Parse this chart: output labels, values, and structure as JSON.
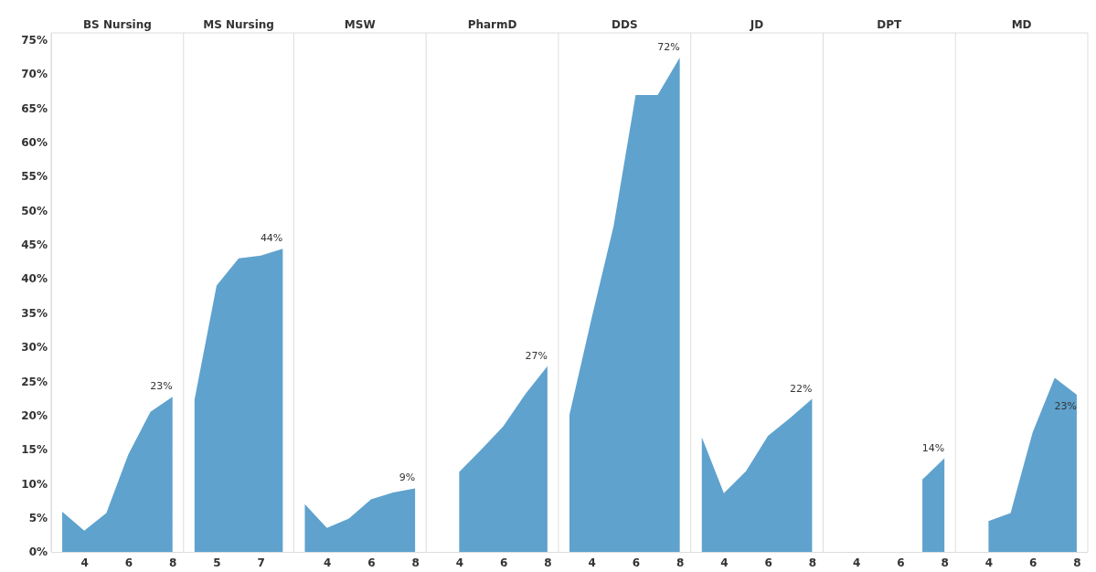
{
  "chart_data": [
    {
      "type": "area",
      "title": "BS Nursing",
      "x": [
        3,
        4,
        5,
        6,
        7,
        8
      ],
      "values": [
        5.9,
        3.1,
        5.7,
        14.3,
        20.5,
        22.7
      ],
      "value_labels": [
        null,
        null,
        null,
        null,
        null,
        "23%"
      ],
      "color": "#5fa2ce",
      "xlim": [
        2.5,
        8.5
      ],
      "xticks": [
        4,
        6,
        8
      ],
      "ylim": [
        0,
        76
      ],
      "yticks": [
        {
          "value": 0,
          "label": "0%"
        },
        {
          "value": 5,
          "label": "5%"
        },
        {
          "value": 10,
          "label": "10%"
        },
        {
          "value": 15,
          "label": "15%"
        },
        {
          "value": 20,
          "label": "20%"
        },
        {
          "value": 25,
          "label": "25%"
        },
        {
          "value": 30,
          "label": "30%"
        },
        {
          "value": 35,
          "label": "35%"
        },
        {
          "value": 40,
          "label": "40%"
        },
        {
          "value": 45,
          "label": "45%"
        },
        {
          "value": 50,
          "label": "50%"
        },
        {
          "value": 55,
          "label": "55%"
        },
        {
          "value": 60,
          "label": "60%"
        },
        {
          "value": 65,
          "label": "65%"
        },
        {
          "value": 70,
          "label": "70%"
        },
        {
          "value": 75,
          "label": "75%"
        }
      ]
    },
    {
      "type": "area",
      "title": "MS Nursing",
      "x": [
        4,
        5,
        6,
        7,
        8
      ],
      "values": [
        22.3,
        39.0,
        43.0,
        43.4,
        44.4
      ],
      "value_labels": [
        null,
        null,
        null,
        null,
        "44%"
      ],
      "color": "#5fa2ce",
      "xlim": [
        3.5,
        8.5
      ],
      "xticks": [
        5,
        7
      ],
      "ylim": [
        0,
        76
      ],
      "tick_labels": "x"
    },
    {
      "type": "area",
      "title": "MSW",
      "x": [
        3,
        4,
        5,
        6,
        7,
        8
      ],
      "values": [
        7.0,
        3.5,
        4.9,
        7.7,
        8.7,
        9.3
      ],
      "value_labels": [
        null,
        null,
        null,
        null,
        null,
        "9%"
      ],
      "color": "#5fa2ce",
      "xlim": [
        2.5,
        8.5
      ],
      "xticks": [
        4,
        6,
        8
      ],
      "ylim": [
        0,
        76
      ],
      "tick_labels": "x"
    },
    {
      "type": "area",
      "title": "PharmD",
      "x": [
        4,
        5,
        6,
        7,
        8
      ],
      "values": [
        11.7,
        15.0,
        18.4,
        23.1,
        27.2
      ],
      "value_labels": [
        null,
        null,
        null,
        null,
        "27%"
      ],
      "color": "#5fa2ce",
      "xlim": [
        2.5,
        8.5
      ],
      "xticks": [
        4,
        6,
        8
      ],
      "ylim": [
        0,
        76
      ],
      "tick_labels": "x"
    },
    {
      "type": "area",
      "title": "DDS",
      "x": [
        3,
        4,
        5,
        6,
        7,
        8
      ],
      "values": [
        20.1,
        34.2,
        47.7,
        66.9,
        66.9,
        72.4
      ],
      "value_labels": [
        null,
        null,
        null,
        null,
        null,
        "72%"
      ],
      "color": "#5fa2ce",
      "xlim": [
        2.5,
        8.5
      ],
      "xticks": [
        4,
        6,
        8
      ],
      "ylim": [
        0,
        76
      ],
      "tick_labels": "x"
    },
    {
      "type": "area",
      "title": "JD",
      "x": [
        3,
        4,
        5,
        6,
        7,
        8
      ],
      "values": [
        16.8,
        8.6,
        11.8,
        17.0,
        19.6,
        22.4
      ],
      "value_labels": [
        null,
        null,
        null,
        null,
        null,
        "22%"
      ],
      "color": "#5fa2ce",
      "xlim": [
        2.5,
        8.5
      ],
      "xticks": [
        4,
        6,
        8
      ],
      "ylim": [
        0,
        76
      ],
      "tick_labels": "x"
    },
    {
      "type": "area",
      "title": "DPT",
      "x": [
        7,
        8
      ],
      "values": [
        10.6,
        13.7
      ],
      "value_labels": [
        null,
        "14%"
      ],
      "color": "#5fa2ce",
      "xlim": [
        2.5,
        8.5
      ],
      "xticks": [
        4,
        6,
        8
      ],
      "ylim": [
        0,
        76
      ],
      "tick_labels": "x"
    },
    {
      "type": "area",
      "title": "MD",
      "x": [
        4,
        5,
        6,
        7,
        8
      ],
      "values": [
        4.5,
        5.7,
        17.5,
        25.5,
        23.0
      ],
      "value_labels": [
        null,
        null,
        null,
        null,
        "23%"
      ],
      "color": "#5fa2ce",
      "xlim": [
        2.5,
        8.5
      ],
      "xticks": [
        4,
        6,
        8
      ],
      "ylim": [
        0,
        76
      ],
      "tick_labels": "x"
    }
  ]
}
